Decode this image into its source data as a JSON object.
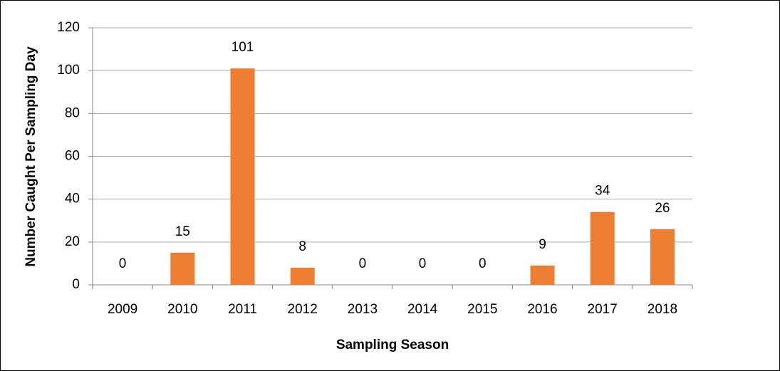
{
  "chart_data": {
    "type": "bar",
    "x_label": "Sampling Season",
    "y_label": "Number Caught Per Sampling Day",
    "categories": [
      "2009",
      "2010",
      "2011",
      "2012",
      "2013",
      "2014",
      "2015",
      "2016",
      "2017",
      "2018"
    ],
    "values": [
      0,
      15,
      101,
      8,
      0,
      0,
      0,
      9,
      34,
      26
    ],
    "color": "#ed7d31",
    "ylim": [
      0,
      120
    ],
    "yticks": [
      0,
      20,
      40,
      60,
      80,
      100,
      120
    ],
    "grid": true
  }
}
